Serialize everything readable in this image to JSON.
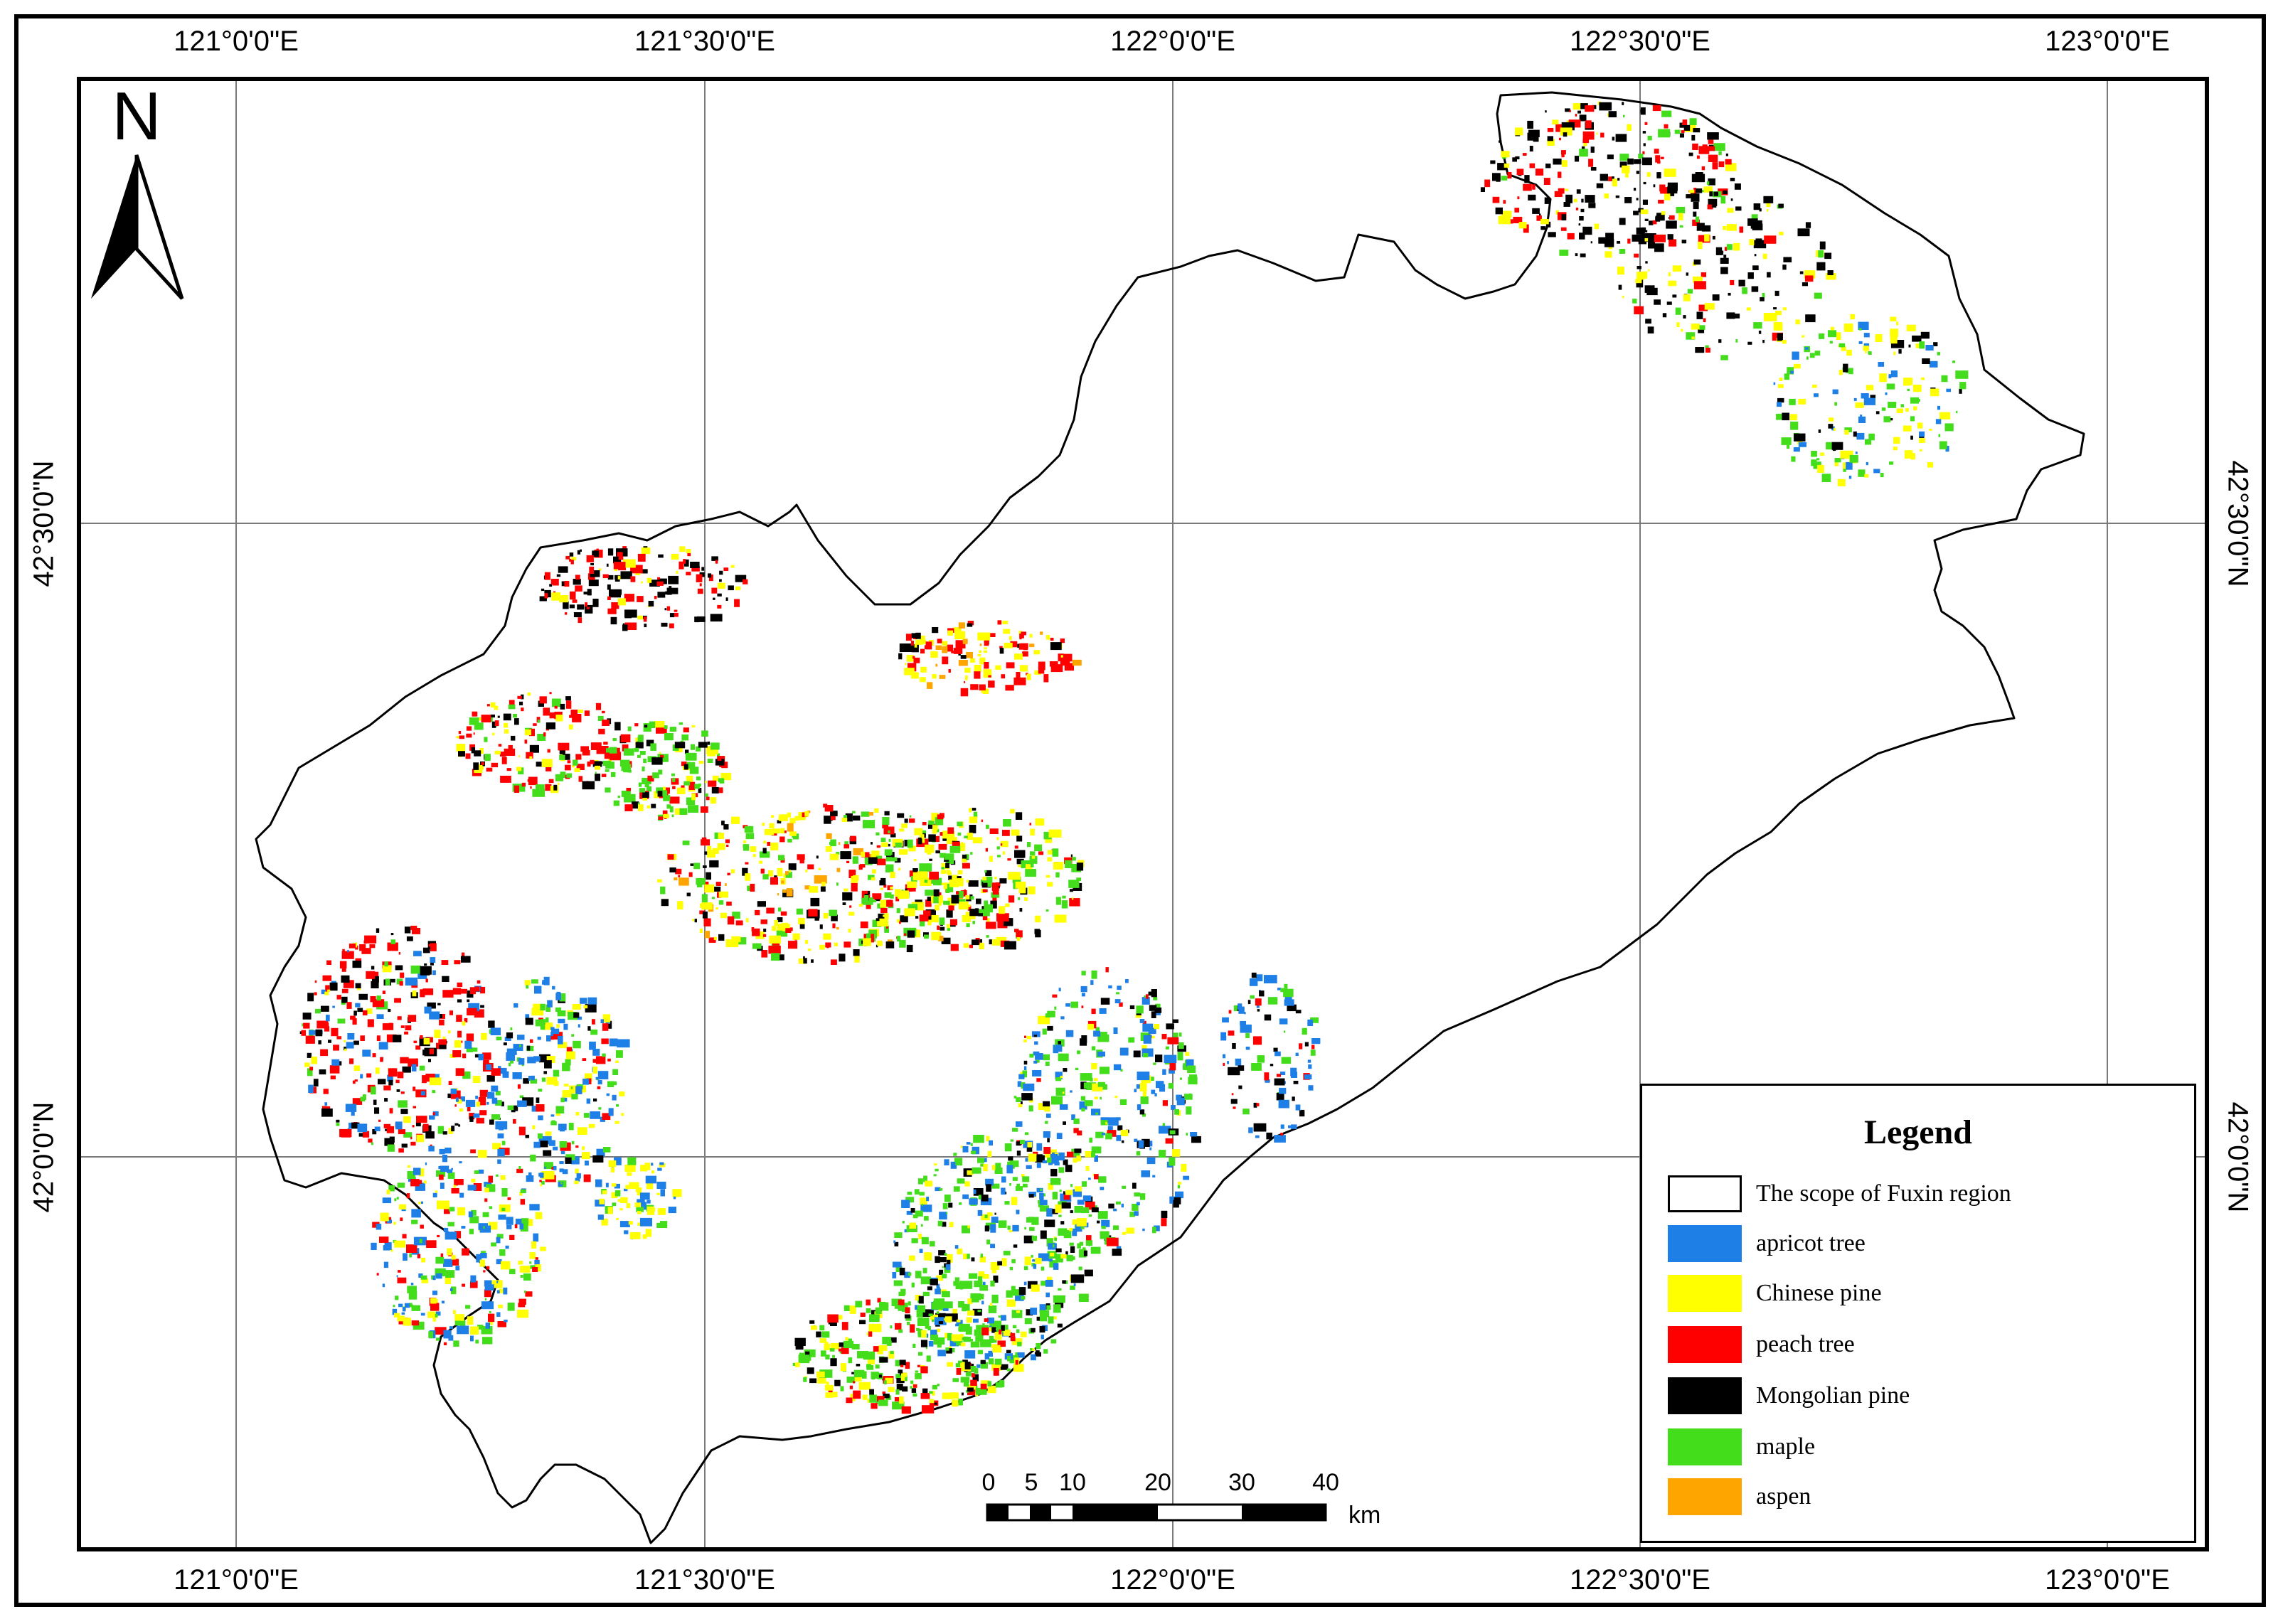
{
  "map": {
    "north_label": "N",
    "lon_ticks": [
      "121°0'0\"E",
      "121°30'0\"E",
      "122°0'0\"E",
      "122°30'0\"E",
      "123°0'0\"E"
    ],
    "lat_ticks": [
      "42°30'0\"N",
      "42°0'0\"N"
    ]
  },
  "legend": {
    "title": "Legend",
    "items": [
      {
        "label": "The scope of Fuxin region",
        "color": "#ffffff"
      },
      {
        "label": "apricot tree",
        "color": "#1e7fe6"
      },
      {
        "label": "Chinese pine",
        "color": "#ffff00"
      },
      {
        "label": "peach tree",
        "color": "#ff0000"
      },
      {
        "label": "Mongolian pine",
        "color": "#000000"
      },
      {
        "label": "maple",
        "color": "#44dd1c"
      },
      {
        "label": "aspen",
        "color": "#ffa500"
      }
    ]
  },
  "scalebar": {
    "labels": [
      "0",
      "5",
      "10",
      "20",
      "30",
      "40"
    ],
    "unit": "km"
  }
}
